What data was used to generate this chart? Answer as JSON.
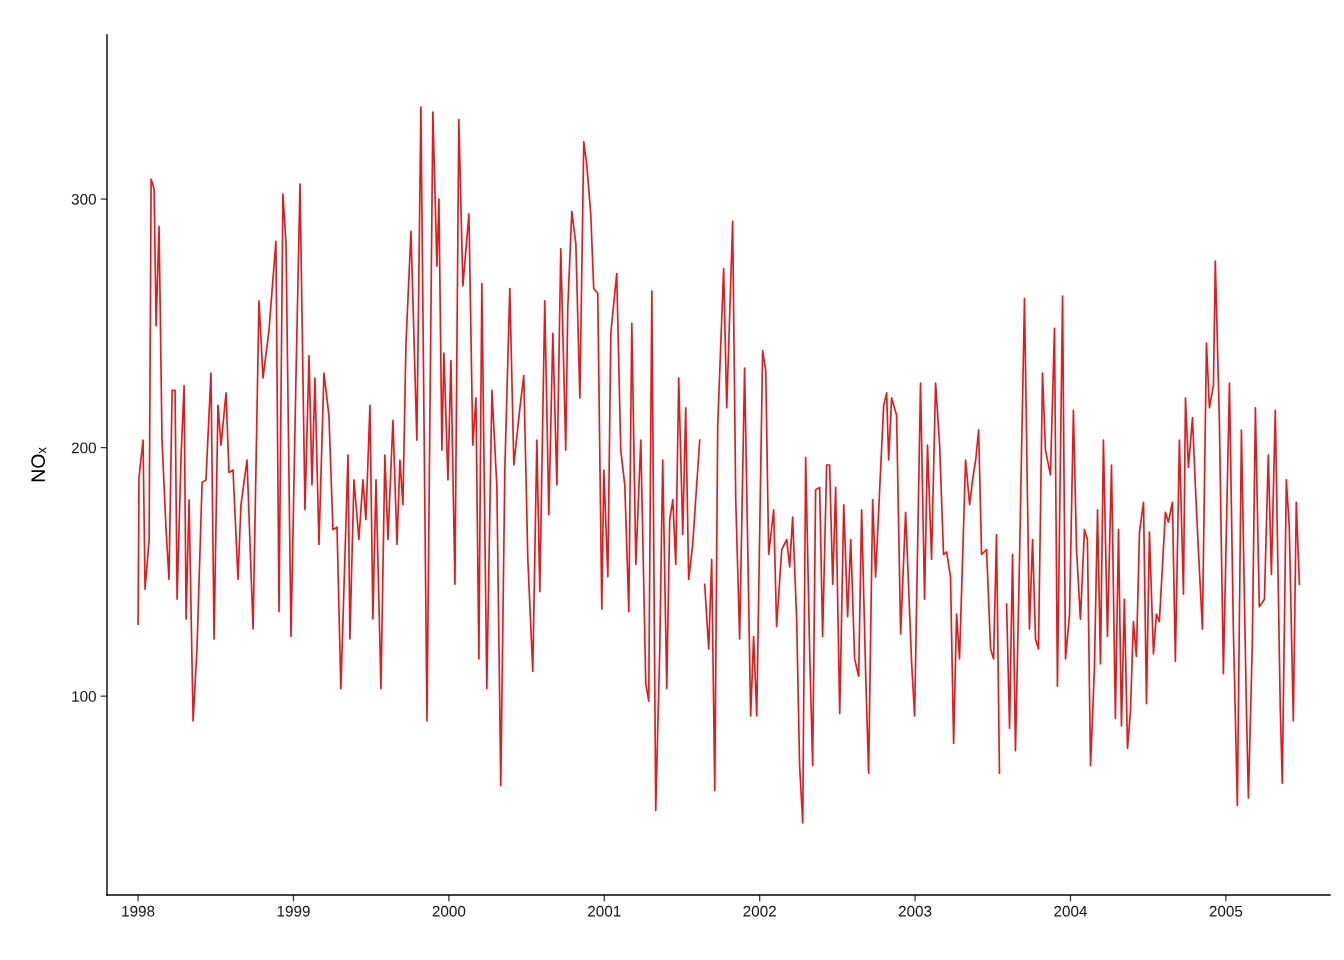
{
  "chart_data": {
    "type": "line",
    "ylabel": "NOₓ",
    "x": [
      1998.0,
      1998.006,
      1998.032,
      1998.045,
      1998.071,
      1998.084,
      1998.103,
      1998.116,
      1998.135,
      1998.154,
      1998.18,
      1998.199,
      1998.219,
      1998.238,
      1998.251,
      1998.277,
      1998.296,
      1998.309,
      1998.328,
      1998.354,
      1998.379,
      1998.412,
      1998.437,
      1998.469,
      1998.489,
      1998.514,
      1998.534,
      1998.566,
      1998.585,
      1998.611,
      1998.643,
      1998.662,
      1998.701,
      1998.74,
      1998.778,
      1998.804,
      1998.842,
      1998.887,
      1998.907,
      1998.932,
      1998.952,
      1998.984,
      1999.016,
      1999.042,
      1999.074,
      1999.1,
      1999.119,
      1999.138,
      1999.164,
      1999.196,
      1999.228,
      1999.254,
      1999.28,
      1999.305,
      1999.351,
      1999.363,
      1999.389,
      1999.421,
      1999.447,
      1999.466,
      1999.492,
      1999.511,
      1999.531,
      1999.563,
      1999.588,
      1999.608,
      1999.64,
      1999.666,
      1999.685,
      1999.704,
      1999.724,
      1999.756,
      1999.794,
      1999.82,
      1999.859,
      1999.897,
      1999.923,
      1999.936,
      1999.955,
      1999.968,
      1999.994,
      2000.013,
      2000.039,
      2000.064,
      2000.09,
      2000.129,
      2000.154,
      2000.174,
      2000.193,
      2000.212,
      2000.244,
      2000.277,
      2000.309,
      2000.334,
      2000.36,
      2000.392,
      2000.418,
      2000.457,
      2000.482,
      2000.508,
      2000.54,
      2000.566,
      2000.585,
      2000.617,
      2000.643,
      2000.669,
      2000.695,
      2000.72,
      2000.752,
      2000.765,
      2000.791,
      2000.817,
      2000.843,
      2000.868,
      2000.887,
      2000.913,
      2000.932,
      2000.958,
      2000.984,
      2000.997,
      2001.023,
      2001.042,
      2001.08,
      2001.106,
      2001.132,
      2001.158,
      2001.177,
      2001.203,
      2001.235,
      2001.267,
      2001.286,
      2001.306,
      2001.331,
      2001.357,
      2001.376,
      2001.402,
      2001.421,
      2001.441,
      2001.46,
      2001.479,
      2001.505,
      2001.524,
      2001.543,
      2001.569,
      2001.614,
      2001.63,
      2001.646,
      2001.672,
      2001.691,
      2001.711,
      2001.73,
      2001.768,
      2001.788,
      2001.826,
      2001.846,
      2001.871,
      2001.903,
      2001.942,
      2001.961,
      2001.981,
      2002.019,
      2002.039,
      2002.058,
      2002.09,
      2002.109,
      2002.142,
      2002.174,
      2002.193,
      2002.212,
      2002.238,
      2002.257,
      2002.277,
      2002.296,
      2002.322,
      2002.341,
      2002.36,
      2002.386,
      2002.405,
      2002.431,
      2002.45,
      2002.47,
      2002.489,
      2002.515,
      2002.541,
      2002.566,
      2002.586,
      2002.611,
      2002.637,
      2002.656,
      2002.682,
      2002.701,
      2002.727,
      2002.746,
      2002.772,
      2002.798,
      2002.817,
      2002.83,
      2002.849,
      2002.881,
      2002.907,
      2002.939,
      2002.978,
      2002.997,
      2003.035,
      2003.061,
      2003.08,
      2003.106,
      2003.132,
      2003.158,
      2003.183,
      2003.203,
      2003.228,
      2003.248,
      2003.267,
      2003.286,
      2003.325,
      2003.351,
      2003.37,
      2003.39,
      2003.409,
      2003.428,
      2003.46,
      2003.486,
      2003.505,
      2003.524,
      2003.543,
      2003.565,
      2003.589,
      2003.608,
      2003.627,
      2003.646,
      2003.672,
      2003.704,
      2003.736,
      2003.756,
      2003.775,
      2003.794,
      2003.82,
      2003.839,
      2003.871,
      2003.897,
      2003.916,
      2003.949,
      2003.968,
      2003.994,
      2004.019,
      2004.039,
      2004.064,
      2004.09,
      2004.109,
      2004.129,
      2004.154,
      2004.174,
      2004.193,
      2004.212,
      2004.238,
      2004.264,
      2004.289,
      2004.309,
      2004.328,
      2004.347,
      2004.367,
      2004.386,
      2004.405,
      2004.424,
      2004.444,
      2004.47,
      2004.489,
      2004.508,
      2004.534,
      2004.553,
      2004.572,
      2004.611,
      2004.63,
      2004.656,
      2004.675,
      2004.701,
      2004.727,
      2004.74,
      2004.759,
      2004.785,
      2004.804,
      2004.823,
      2004.849,
      2004.875,
      2004.894,
      2004.92,
      2004.932,
      2004.958,
      2004.984,
      2005.023,
      2005.048,
      2005.074,
      2005.1,
      2005.132,
      2005.145,
      2005.17,
      2005.19,
      2005.215,
      2005.248,
      2005.273,
      2005.293,
      2005.318,
      2005.35,
      2005.363,
      2005.389,
      2005.408,
      2005.434,
      2005.453,
      2005.473
    ],
    "series": [
      {
        "color": "#e41a1c",
        "values": [
          129,
          188,
          203,
          143,
          163,
          308,
          304,
          249,
          289,
          203,
          167,
          147,
          223,
          223,
          139,
          197,
          225,
          131,
          179,
          90,
          119,
          186,
          187,
          230,
          123,
          217,
          201,
          222,
          190,
          191,
          147,
          177,
          195,
          127,
          259,
          228,
          247,
          283,
          134,
          302,
          282,
          124,
          228,
          306,
          175,
          237,
          185,
          228,
          161,
          230,
          213,
          167,
          168,
          103,
          197,
          123,
          187,
          163,
          187,
          171,
          217,
          131,
          187,
          103,
          197,
          163,
          211,
          161,
          195,
          177,
          242,
          287,
          203,
          337,
          90,
          335,
          273,
          300,
          199,
          238,
          187,
          235,
          145,
          332,
          265,
          294,
          201,
          220,
          115,
          266,
          103,
          223,
          184,
          64,
          191,
          264,
          193,
          216,
          229,
          155,
          110,
          203,
          142,
          259,
          173,
          246,
          185,
          280,
          199,
          256,
          295,
          282,
          220,
          323,
          314,
          294,
          264,
          262,
          135,
          191,
          148,
          246,
          270,
          199,
          185,
          134,
          250,
          153,
          203,
          105,
          98,
          263,
          54,
          119,
          195,
          103,
          171,
          179,
          153,
          228,
          165,
          216,
          147,
          161,
          203,
          null,
          145,
          119,
          155,
          62,
          209,
          272,
          216,
          291,
          179,
          123,
          232,
          92,
          124,
          92,
          239,
          231,
          157,
          175,
          128,
          159,
          163,
          152,
          172,
          131,
          72,
          49,
          196,
          117,
          72,
          183,
          184,
          124,
          193,
          193,
          145,
          184,
          93,
          177,
          132,
          163,
          115,
          108,
          175,
          109,
          69,
          179,
          148,
          183,
          217,
          222,
          195,
          220,
          213,
          125,
          174,
          113,
          92,
          226,
          139,
          201,
          155,
          226,
          201,
          157,
          158,
          148,
          81,
          133,
          115,
          195,
          177,
          187,
          195,
          207,
          157,
          159,
          119,
          115,
          165,
          69,
          null,
          137,
          87,
          157,
          78,
          155,
          260,
          127,
          163,
          123,
          119,
          230,
          199,
          189,
          248,
          104,
          261,
          115,
          133,
          215,
          159,
          131,
          167,
          163,
          72,
          111,
          175,
          113,
          203,
          124,
          193,
          91,
          167,
          88,
          139,
          79,
          94,
          130,
          116,
          166,
          178,
          97,
          166,
          117,
          133,
          130,
          174,
          170,
          178,
          114,
          203,
          141,
          220,
          192,
          212,
          184,
          159,
          127,
          242,
          216,
          225,
          275,
          211,
          109,
          226,
          127,
          56,
          207,
          95,
          59,
          121,
          216,
          136,
          139,
          197,
          149,
          215,
          95,
          65,
          187,
          168,
          90,
          178,
          145
        ]
      }
    ],
    "xlim": [
      1997.8,
      2005.67
    ],
    "xticks": [
      1998,
      1999,
      2000,
      2001,
      2002,
      2003,
      2004,
      2005
    ],
    "ylim": [
      20,
      366
    ],
    "yticks": [
      100,
      200,
      300
    ],
    "grid": false,
    "line_style": "solid"
  }
}
